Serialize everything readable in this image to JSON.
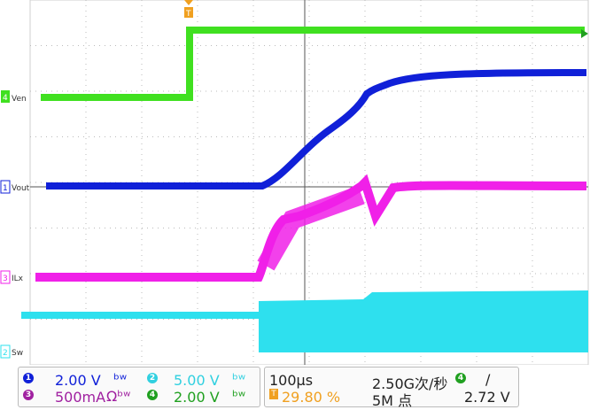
{
  "channels": [
    {
      "id": "1",
      "label": "Vout",
      "color": "#1020d8"
    },
    {
      "id": "2",
      "label": "Sw",
      "color": "#2ee0ee"
    },
    {
      "id": "3",
      "label": "ILx",
      "color": "#f020e8"
    },
    {
      "id": "4",
      "label": "Ven",
      "color": "#40e020"
    }
  ],
  "trigger_marker": {
    "label": "T",
    "color": "#f0a020"
  },
  "status_bar": {
    "ch1": {
      "num": "1",
      "scale": "2.00 V",
      "color": "#1020d8",
      "icon": "bandwidth-icon",
      "icon_glyph": "ᵇʷ"
    },
    "ch2": {
      "num": "2",
      "scale": "5.00 V",
      "color": "#30d0e0",
      "icon": "bandwidth-icon",
      "icon_glyph": "ᵇʷ"
    },
    "ch3": {
      "num": "3",
      "scale": "500mA",
      "color": "#a020a0",
      "icon": "ohm-bandwidth-icon",
      "icon_glyph": "Ωᵇʷ"
    },
    "ch4": {
      "num": "4",
      "scale": "2.00 V",
      "color": "#20a020",
      "icon": "bandwidth-icon",
      "icon_glyph": "ᵇʷ"
    },
    "timebase": "100µs",
    "trigger_pos": "29.80 %",
    "trigger_pos_icon_glyph": "T",
    "sample_rate": "2.50G次/秒",
    "record": "5M 点",
    "trig_ch": {
      "num": "4",
      "color": "#20a020",
      "slope_glyph": "/"
    },
    "trig_level": "2.72 V"
  }
}
